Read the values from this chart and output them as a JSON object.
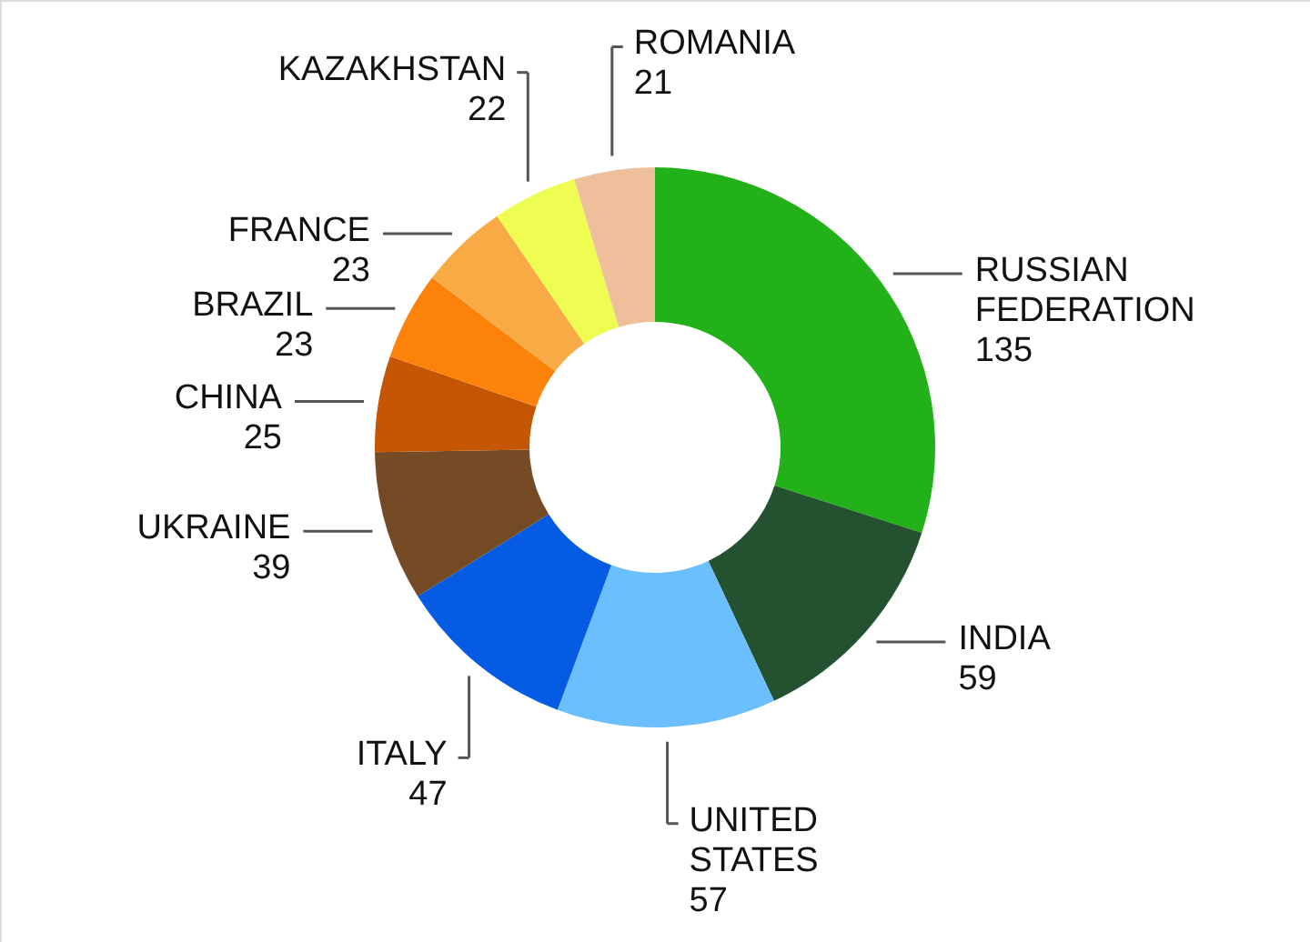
{
  "chart_data": {
    "type": "donut",
    "categories": [
      "RUSSIAN FEDERATION",
      "INDIA",
      "UNITED STATES",
      "ITALY",
      "UKRAINE",
      "CHINA",
      "BRAZIL",
      "FRANCE",
      "KAZAKHSTAN",
      "ROMANIA"
    ],
    "values": [
      135,
      59,
      57,
      47,
      39,
      25,
      23,
      23,
      22,
      21
    ],
    "colors": [
      "#23b11a",
      "#245230",
      "#6cbffe",
      "#055be2",
      "#744b24",
      "#c45604",
      "#fd820a",
      "#f8ab45",
      "#effc52",
      "#efbf9c"
    ],
    "data_labels": true
  }
}
